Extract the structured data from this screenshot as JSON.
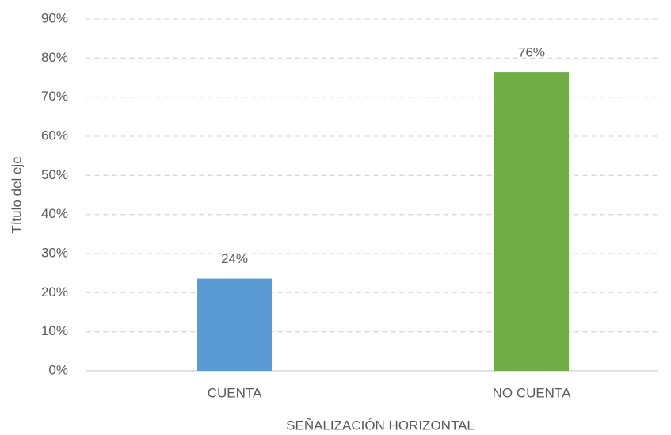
{
  "chart_data": {
    "type": "bar",
    "x_label": "SEÑALIZACIÓN HORIZONTAL",
    "y_label": "Título del eje",
    "categories": [
      "CUENTA",
      "NO CUENTA"
    ],
    "values": [
      23.6,
      76.4
    ],
    "value_labels": [
      "24%",
      "76%"
    ],
    "colors": [
      "#5b9bd5",
      "#70ad47"
    ],
    "ylim": [
      0,
      90
    ],
    "yticks": [
      {
        "value": 0,
        "label": "0%"
      },
      {
        "value": 10,
        "label": "10%"
      },
      {
        "value": 20,
        "label": "20%"
      },
      {
        "value": 30,
        "label": "30%"
      },
      {
        "value": 40,
        "label": "40%"
      },
      {
        "value": 50,
        "label": "50%"
      },
      {
        "value": 60,
        "label": "60%"
      },
      {
        "value": 70,
        "label": "70%"
      },
      {
        "value": 80,
        "label": "80%"
      },
      {
        "value": 90,
        "label": "90%"
      }
    ],
    "grid": true
  }
}
